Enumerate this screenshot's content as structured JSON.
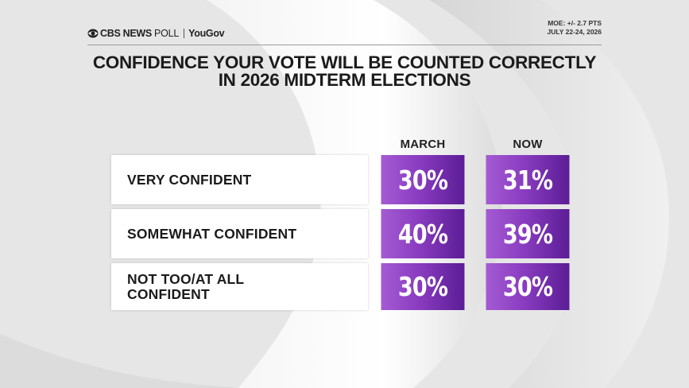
{
  "header": {
    "brand": "CBS NEWS",
    "poll": "POLL",
    "partner": "YouGov",
    "moe": "MOE: +/- 2.7 PTS",
    "dates": "JULY 22-24, 2026"
  },
  "chart_data": {
    "type": "table",
    "title_lines": [
      "CONFIDENCE YOUR VOTE WILL BE COUNTED CORRECTLY",
      "IN 2026 MIDTERM ELECTIONS"
    ],
    "columns": [
      "MARCH",
      "NOW"
    ],
    "unit": "%",
    "rows": [
      {
        "label": "VERY CONFIDENT",
        "values": [
          30,
          31
        ]
      },
      {
        "label": "SOMEWHAT CONFIDENT",
        "values": [
          40,
          39
        ]
      },
      {
        "label_lines": [
          "NOT TOO/AT ALL",
          "CONFIDENT"
        ],
        "values": [
          30,
          30
        ]
      }
    ]
  },
  "colors": {
    "purple_light": "#a45bd3",
    "purple_dark": "#5b1d96",
    "background": "#e7e7e7"
  }
}
